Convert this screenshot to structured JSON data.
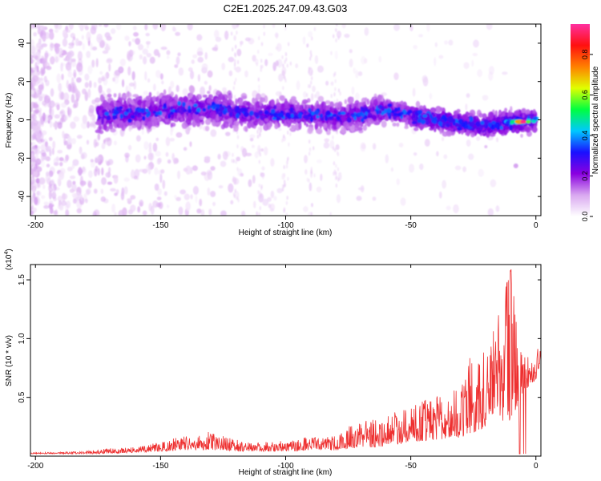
{
  "figure_title": "C2E1.2025.247.09.43.G03",
  "chart_data": [
    {
      "type": "heatmap",
      "xlabel": "Height of straight line (km)",
      "ylabel": "Frequency (Hz)",
      "xlim": [
        -202,
        2
      ],
      "ylim": [
        -50,
        50
      ],
      "xticks": [
        -200,
        -150,
        -100,
        -50,
        0
      ],
      "yticks": [
        -40,
        -20,
        0,
        20,
        40
      ],
      "xtick_labels": [
        "-200",
        "-150",
        "-100",
        "-50",
        "0"
      ],
      "ytick_labels": [
        "-40",
        "-20",
        "0",
        "20",
        "40"
      ],
      "colorbar": {
        "label": "Normalized spectral amplitude",
        "range": [
          0,
          0.95
        ],
        "ticks": [
          0.0,
          0.2,
          0.4,
          0.6,
          0.8
        ],
        "tick_labels": [
          "0.0",
          "0.2",
          "0.4",
          "0.6",
          "0.8"
        ],
        "colors": [
          "#ffffff",
          "#d9a8f0",
          "#8a00e0",
          "#1a10ff",
          "#00c8ff",
          "#00ff40",
          "#e0ff00",
          "#ff8000",
          "#ff1010",
          "#ff30a0"
        ]
      },
      "ridge_center_hz": [
        [
          -175,
          2
        ],
        [
          -160,
          4
        ],
        [
          -150,
          5
        ],
        [
          -140,
          5
        ],
        [
          -130,
          6
        ],
        [
          -120,
          4
        ],
        [
          -110,
          3
        ],
        [
          -100,
          3
        ],
        [
          -90,
          3
        ],
        [
          -80,
          1
        ],
        [
          -70,
          3
        ],
        [
          -60,
          5
        ],
        [
          -50,
          2
        ],
        [
          -40,
          0
        ],
        [
          -30,
          -2
        ],
        [
          -20,
          -3
        ],
        [
          -10,
          -1
        ],
        [
          -5,
          -1
        ],
        [
          0,
          0
        ]
      ],
      "peak": {
        "x": -5,
        "y": -1,
        "value": 0.95
      }
    },
    {
      "type": "line",
      "xlabel": "Height of straight line (km)",
      "ylabel": "SNR (10 * v/v)",
      "y_scale_label": "(x10",
      "y_scale_exponent": "4",
      "y_scale_suffix": ")",
      "xlim": [
        -202,
        2
      ],
      "ylim": [
        0,
        1.63
      ],
      "xticks": [
        -200,
        -150,
        -100,
        -50,
        0
      ],
      "yticks": [
        0.5,
        1.0,
        1.5
      ],
      "xtick_labels": [
        "-200",
        "-150",
        "-100",
        "-50",
        "0"
      ],
      "ytick_labels": [
        "0.5",
        "1.0",
        "1.5"
      ],
      "color": "#ee3030",
      "envelope": [
        [
          -202,
          0.02,
          0.03
        ],
        [
          -180,
          0.02,
          0.04
        ],
        [
          -175,
          0.02,
          0.06
        ],
        [
          -160,
          0.03,
          0.08
        ],
        [
          -150,
          0.04,
          0.12
        ],
        [
          -140,
          0.05,
          0.18
        ],
        [
          -130,
          0.05,
          0.21
        ],
        [
          -120,
          0.04,
          0.14
        ],
        [
          -110,
          0.04,
          0.12
        ],
        [
          -100,
          0.04,
          0.13
        ],
        [
          -90,
          0.05,
          0.17
        ],
        [
          -80,
          0.05,
          0.18
        ],
        [
          -70,
          0.07,
          0.32
        ],
        [
          -60,
          0.08,
          0.35
        ],
        [
          -50,
          0.12,
          0.45
        ],
        [
          -40,
          0.14,
          0.5
        ],
        [
          -30,
          0.16,
          0.6
        ],
        [
          -25,
          0.2,
          0.95
        ],
        [
          -20,
          0.25,
          0.9
        ],
        [
          -15,
          0.28,
          1.2
        ],
        [
          -10,
          0.3,
          1.6
        ],
        [
          -5,
          0.55,
          0.85
        ],
        [
          0,
          0.65,
          0.85
        ],
        [
          2,
          0.8,
          1.03
        ]
      ]
    }
  ]
}
